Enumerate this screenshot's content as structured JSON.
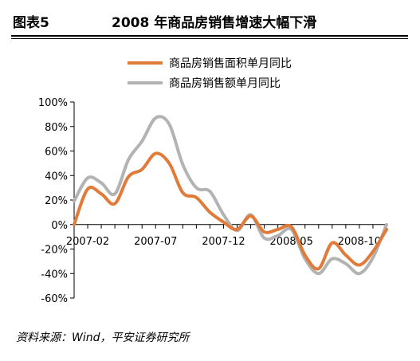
{
  "figure": {
    "label": "图表5",
    "title": "2008 年商品房销售增速大幅下滑",
    "source": "资料来源：Wind，平安证券研究所"
  },
  "chart_data": {
    "type": "line",
    "x": [
      "2007-01",
      "2007-02",
      "2007-03",
      "2007-04",
      "2007-05",
      "2007-06",
      "2007-07",
      "2007-08",
      "2007-09",
      "2007-10",
      "2007-11",
      "2007-12",
      "2008-01",
      "2008-02",
      "2008-03",
      "2008-04",
      "2008-05",
      "2008-06",
      "2008-07",
      "2008-08",
      "2008-09",
      "2008-10",
      "2008-11",
      "2008-12"
    ],
    "x_ticks": [
      "2007-02",
      "2007-07",
      "2007-12",
      "2008-05",
      "2008-10"
    ],
    "series": [
      {
        "name": "商品房销售面积单月同比",
        "color": "#E07B39",
        "values": [
          0,
          29,
          25,
          17,
          39,
          45,
          58,
          50,
          26,
          22,
          10,
          2,
          -4,
          7,
          -6,
          -4,
          -2,
          -25,
          -36,
          -15,
          -25,
          -33,
          -22,
          -4
        ]
      },
      {
        "name": "商品房销售额单月同比",
        "color": "#B3B3B3",
        "values": [
          19,
          38,
          34,
          25,
          53,
          68,
          87,
          82,
          49,
          30,
          27,
          8,
          -5,
          8,
          -11,
          -9,
          -4,
          -28,
          -40,
          -28,
          -32,
          -40,
          -27,
          0
        ]
      }
    ],
    "y_ticks": [
      "100%",
      "80%",
      "60%",
      "40%",
      "20%",
      "0%",
      "-20%",
      "-40%",
      "-60%"
    ],
    "ylim": [
      -60,
      100
    ],
    "legend_position": "top"
  }
}
